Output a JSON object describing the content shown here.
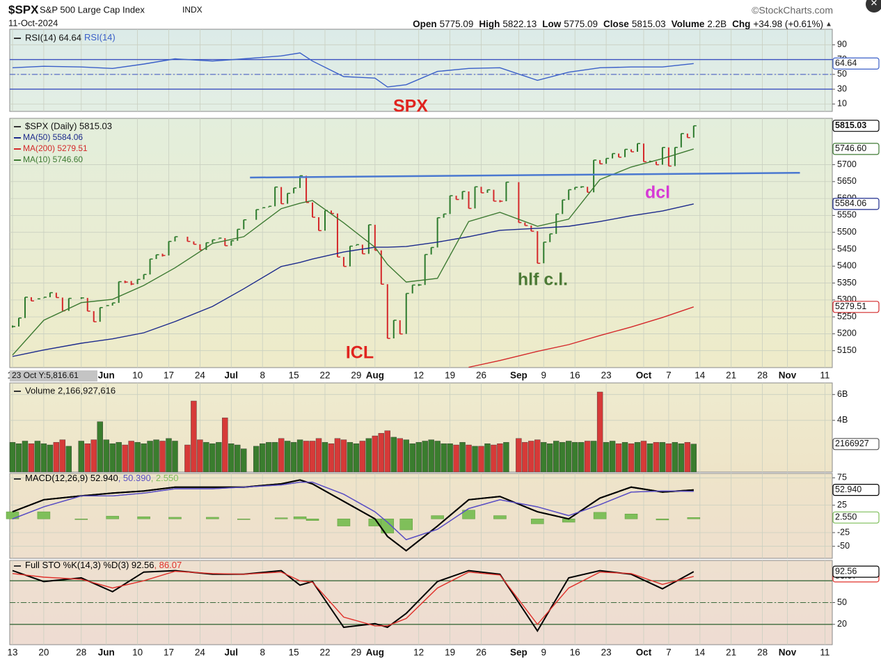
{
  "header": {
    "symbol": "$SPX",
    "name": "S&P 500 Large Cap Index",
    "exchange": "INDX",
    "source": "©StockCharts.com",
    "date": "11-Oct-2024",
    "quote": [
      {
        "label": "Open",
        "value": 5775.09
      },
      {
        "label": "High",
        "value": 5822.13
      },
      {
        "label": "Low",
        "value": 5775.09
      },
      {
        "label": "Close",
        "value": 5815.03
      },
      {
        "label": "Volume",
        "value": "2.2B"
      },
      {
        "label": "Chg",
        "value": "+34.98 (+0.61%)"
      }
    ]
  },
  "x_axis": {
    "cursor_label": "23 Oct Y:5,816.61",
    "ticks": [
      {
        "value": "2024-05-13",
        "label": "13"
      },
      {
        "value": "2024-05-20",
        "label": "20"
      },
      {
        "value": "2024-05-28",
        "label": "28"
      },
      {
        "value": "2024-06-03",
        "label": "Jun"
      },
      {
        "value": "2024-06-10",
        "label": "10"
      },
      {
        "value": "2024-06-17",
        "label": "17"
      },
      {
        "value": "2024-06-24",
        "label": "24"
      },
      {
        "value": "2024-07-01",
        "label": "Jul"
      },
      {
        "value": "2024-07-08",
        "label": "8"
      },
      {
        "value": "2024-07-15",
        "label": "15"
      },
      {
        "value": "2024-07-22",
        "label": "22"
      },
      {
        "value": "2024-07-29",
        "label": "29"
      },
      {
        "value": "2024-08-01",
        "label": "Aug"
      },
      {
        "value": "2024-08-12",
        "label": "12"
      },
      {
        "value": "2024-08-19",
        "label": "19"
      },
      {
        "value": "2024-08-26",
        "label": "26"
      },
      {
        "value": "2024-09-03",
        "label": "Sep"
      },
      {
        "value": "2024-09-09",
        "label": "9"
      },
      {
        "value": "2024-09-16",
        "label": "16"
      },
      {
        "value": "2024-09-23",
        "label": "23"
      },
      {
        "value": "2024-10-01",
        "label": "Oct"
      },
      {
        "value": "2024-10-07",
        "label": "7"
      },
      {
        "value": "2024-10-14",
        "label": "14"
      },
      {
        "value": "2024-10-21",
        "label": "21"
      },
      {
        "value": "2024-10-28",
        "label": "28"
      },
      {
        "value": "2024-11-01",
        "label": "Nov"
      },
      {
        "value": "2024-11-11",
        "label": "11"
      }
    ]
  },
  "chart_data": [
    {
      "type": "line",
      "title": "RSI(14) 64.64",
      "x": [
        "2024-05-13",
        "2024-05-20",
        "2024-05-28",
        "2024-06-04",
        "2024-06-11",
        "2024-06-18",
        "2024-06-26",
        "2024-07-03",
        "2024-07-11",
        "2024-07-16",
        "2024-07-18",
        "2024-07-25",
        "2024-08-01",
        "2024-08-05",
        "2024-08-08",
        "2024-08-15",
        "2024-08-22",
        "2024-08-29",
        "2024-09-06",
        "2024-09-13",
        "2024-09-20",
        "2024-09-27",
        "2024-10-04",
        "2024-10-11"
      ],
      "series": [
        {
          "name": "RSI(14)",
          "color": "#3a5fc8",
          "values": [
            59,
            61,
            60,
            58,
            64,
            71,
            68,
            71,
            75,
            79,
            68,
            47,
            45,
            33,
            36,
            54,
            58,
            59,
            42,
            53,
            59,
            60,
            60,
            64.64
          ]
        }
      ],
      "ylim": [
        0,
        111
      ],
      "yticks": [
        10,
        30,
        50,
        70,
        90
      ],
      "levels": [
        30,
        50,
        70
      ],
      "level_color": "#3a4fc0",
      "value_tags": [
        {
          "value": 64.64,
          "color": "#3a5fc8"
        }
      ],
      "annotations": [
        {
          "text": "SPX",
          "color": "#e0241f"
        }
      ]
    },
    {
      "type": "ohlc",
      "title": "$SPX (Daily) 5815.03",
      "color_up": "#2c7a2c",
      "color_down": "#d4282a",
      "categories": [
        "2024-05-13",
        "2024-05-14",
        "2024-05-15",
        "2024-05-16",
        "2024-05-17",
        "2024-05-20",
        "2024-05-21",
        "2024-05-22",
        "2024-05-23",
        "2024-05-24",
        "2024-05-28",
        "2024-05-29",
        "2024-05-30",
        "2024-05-31",
        "2024-06-03",
        "2024-06-04",
        "2024-06-05",
        "2024-06-06",
        "2024-06-07",
        "2024-06-10",
        "2024-06-11",
        "2024-06-12",
        "2024-06-13",
        "2024-06-14",
        "2024-06-17",
        "2024-06-18",
        "2024-06-20",
        "2024-06-21",
        "2024-06-24",
        "2024-06-25",
        "2024-06-26",
        "2024-06-27",
        "2024-06-28",
        "2024-07-01",
        "2024-07-02",
        "2024-07-03",
        "2024-07-05",
        "2024-07-08",
        "2024-07-09",
        "2024-07-10",
        "2024-07-11",
        "2024-07-12",
        "2024-07-15",
        "2024-07-16",
        "2024-07-17",
        "2024-07-18",
        "2024-07-19",
        "2024-07-22",
        "2024-07-23",
        "2024-07-24",
        "2024-07-25",
        "2024-07-26",
        "2024-07-29",
        "2024-07-30",
        "2024-07-31",
        "2024-08-01",
        "2024-08-02",
        "2024-08-05",
        "2024-08-06",
        "2024-08-07",
        "2024-08-08",
        "2024-08-09",
        "2024-08-12",
        "2024-08-13",
        "2024-08-14",
        "2024-08-15",
        "2024-08-16",
        "2024-08-19",
        "2024-08-20",
        "2024-08-21",
        "2024-08-22",
        "2024-08-23",
        "2024-08-26",
        "2024-08-27",
        "2024-08-28",
        "2024-08-29",
        "2024-08-30",
        "2024-09-03",
        "2024-09-04",
        "2024-09-05",
        "2024-09-06",
        "2024-09-09",
        "2024-09-10",
        "2024-09-11",
        "2024-09-12",
        "2024-09-13",
        "2024-09-16",
        "2024-09-17",
        "2024-09-18",
        "2024-09-19",
        "2024-09-20",
        "2024-09-23",
        "2024-09-24",
        "2024-09-25",
        "2024-09-26",
        "2024-09-27",
        "2024-09-30",
        "2024-10-01",
        "2024-10-02",
        "2024-10-03",
        "2024-10-04",
        "2024-10-07",
        "2024-10-08",
        "2024-10-09",
        "2024-10-10",
        "2024-10-11"
      ],
      "values": [
        5221.42,
        5246.68,
        5308.15,
        5297.1,
        5303.27,
        5308.13,
        5321.41,
        5307.01,
        5267.84,
        5304.72,
        5306.04,
        5266.95,
        5235.48,
        5277.51,
        5283.4,
        5291.34,
        5354.03,
        5352.96,
        5346.99,
        5360.79,
        5375.32,
        5421.03,
        5433.74,
        5431.6,
        5473.23,
        5487.03,
        5473.17,
        5464.62,
        5447.87,
        5469.3,
        5477.9,
        5482.87,
        5460.48,
        5475.09,
        5509.01,
        5537.02,
        5567.19,
        5572.85,
        5576.98,
        5633.91,
        5584.54,
        5615.35,
        5631.22,
        5667.2,
        5588.27,
        5544.59,
        5505.0,
        5564.41,
        5555.74,
        5427.13,
        5399.22,
        5459.1,
        5463.54,
        5436.44,
        5522.3,
        5446.68,
        5346.56,
        5186.33,
        5240.03,
        5199.5,
        5319.31,
        5344.16,
        5344.39,
        5434.43,
        5455.21,
        5543.22,
        5554.25,
        5608.25,
        5597.12,
        5620.85,
        5570.64,
        5634.61,
        5616.84,
        5625.8,
        5592.18,
        5591.96,
        5648.4,
        5528.93,
        5520.07,
        5503.41,
        5408.42,
        5471.05,
        5495.52,
        5554.13,
        5595.76,
        5626.02,
        5633.09,
        5634.58,
        5618.26,
        5713.64,
        5702.55,
        5718.57,
        5732.93,
        5722.26,
        5745.37,
        5738.17,
        5762.48,
        5708.75,
        5709.54,
        5699.94,
        5751.07,
        5695.94,
        5751.13,
        5792.04,
        5780.05,
        5815.03
      ],
      "series": [
        {
          "name": "MA(50) 5584.06",
          "color": "#1c2a8c",
          "x": [
            "2024-05-13",
            "2024-05-20",
            "2024-05-28",
            "2024-06-04",
            "2024-06-11",
            "2024-06-18",
            "2024-06-26",
            "2024-07-03",
            "2024-07-11",
            "2024-07-16",
            "2024-07-18",
            "2024-07-25",
            "2024-08-01",
            "2024-08-05",
            "2024-08-08",
            "2024-08-15",
            "2024-08-22",
            "2024-08-29",
            "2024-09-06",
            "2024-09-13",
            "2024-09-20",
            "2024-09-27",
            "2024-10-04",
            "2024-10-11"
          ],
          "values": [
            5133,
            5152,
            5172,
            5185,
            5203,
            5236,
            5281,
            5333,
            5399,
            5411,
            5421,
            5442,
            5456,
            5456,
            5458,
            5471,
            5487,
            5506,
            5512,
            5518,
            5532,
            5549,
            5563,
            5584.06
          ]
        },
        {
          "name": "MA(200) 5279.51",
          "color": "#d4282a",
          "x": [
            "2024-08-22",
            "2024-08-29",
            "2024-09-06",
            "2024-09-13",
            "2024-09-20",
            "2024-09-27",
            "2024-10-04",
            "2024-10-11"
          ],
          "values": [
            5101,
            5121,
            5148,
            5168,
            5195,
            5220,
            5248,
            5279.51
          ]
        },
        {
          "name": "MA(10) 5746.60",
          "color": "#3d7a32",
          "x": [
            "2024-05-13",
            "2024-05-20",
            "2024-05-28",
            "2024-06-04",
            "2024-06-11",
            "2024-06-18",
            "2024-06-26",
            "2024-07-03",
            "2024-07-11",
            "2024-07-16",
            "2024-07-18",
            "2024-07-25",
            "2024-08-01",
            "2024-08-05",
            "2024-08-08",
            "2024-08-15",
            "2024-08-22",
            "2024-08-29",
            "2024-09-06",
            "2024-09-13",
            "2024-09-20",
            "2024-09-27",
            "2024-10-04",
            "2024-10-11"
          ],
          "values": [
            5137,
            5240,
            5292,
            5302,
            5343,
            5395,
            5467,
            5487,
            5570,
            5586,
            5594,
            5528,
            5456,
            5405,
            5353,
            5364,
            5532,
            5559,
            5518,
            5539,
            5656,
            5693,
            5718,
            5746.6
          ]
        }
      ],
      "ylim": [
        5100,
        5837
      ],
      "yticks": [
        5150,
        5200,
        5250,
        5300,
        5350,
        5400,
        5450,
        5500,
        5550,
        5600,
        5650,
        5700
      ],
      "trendline": {
        "x": [
          "2024-07-04",
          "2024-11-05"
        ],
        "values": [
          5662,
          5676
        ],
        "color": "#4a78d0"
      },
      "value_tags": [
        {
          "value": 5815.03,
          "color": "#000000"
        },
        {
          "value": 5746.6,
          "label": "5746.60",
          "color": "#3d7a32"
        },
        {
          "value": 5584.06,
          "color": "#1c2a8c"
        },
        {
          "value": 5279.51,
          "color": "#d4282a"
        }
      ],
      "annotations": [
        {
          "text": "ICL",
          "color": "#e0241f"
        },
        {
          "text": "hlf c.l.",
          "color": "#4c7a36"
        },
        {
          "text": "dcl",
          "color": "#d63ad6"
        }
      ]
    },
    {
      "type": "bar",
      "title": "Volume 2,166,927,616",
      "values": [
        2.3,
        2.2,
        2.4,
        2.2,
        2.4,
        2.2,
        2.1,
        2.3,
        2.5,
        2.0,
        2.4,
        2.2,
        2.5,
        3.9,
        2.5,
        2.2,
        2.3,
        2.1,
        2.4,
        2.3,
        2.2,
        2.4,
        2.5,
        2.4,
        2.6,
        2.4,
        2.1,
        5.5,
        2.5,
        2.3,
        2.2,
        2.3,
        4.2,
        2.2,
        2.1,
        1.8,
        2.0,
        2.2,
        2.3,
        2.3,
        2.6,
        2.4,
        2.3,
        2.5,
        2.4,
        2.4,
        2.6,
        2.3,
        2.2,
        2.6,
        2.5,
        2.3,
        2.2,
        2.4,
        2.6,
        2.8,
        3.0,
        3.2,
        2.7,
        2.6,
        2.5,
        2.2,
        2.3,
        2.4,
        2.5,
        2.4,
        2.2,
        2.2,
        2.1,
        2.3,
        2.1,
        2.0,
        2.0,
        2.2,
        2.1,
        2.2,
        2.3,
        2.6,
        2.3,
        2.4,
        2.5,
        2.3,
        2.2,
        2.4,
        2.3,
        2.4,
        2.3,
        2.3,
        2.4,
        2.4,
        6.2,
        2.3,
        2.4,
        2.2,
        2.3,
        2.2,
        2.3,
        2.4,
        2.2,
        2.3,
        2.3,
        2.2,
        2.3,
        2.2,
        2.3,
        2.166927616
      ],
      "ylim": [
        0,
        6.9
      ],
      "yticks": [
        {
          "value": 4,
          "label": "4B"
        },
        {
          "value": 6,
          "label": "6B"
        }
      ],
      "value_tags": [
        {
          "value": 2.166927616,
          "label": "2166927",
          "color": "#555555"
        }
      ]
    },
    {
      "type": "line",
      "x": [
        "2024-05-13",
        "2024-05-20",
        "2024-05-28",
        "2024-06-04",
        "2024-06-11",
        "2024-06-18",
        "2024-06-26",
        "2024-07-03",
        "2024-07-11",
        "2024-07-16",
        "2024-07-18",
        "2024-07-25",
        "2024-08-01",
        "2024-08-05",
        "2024-08-08",
        "2024-08-15",
        "2024-08-22",
        "2024-08-29",
        "2024-09-06",
        "2024-09-13",
        "2024-09-20",
        "2024-09-27",
        "2024-10-04",
        "2024-10-11"
      ],
      "series": [
        {
          "name": "MACD(12,26,9) 52.940",
          "color": "#000000",
          "values": [
            13,
            35,
            42,
            47,
            51,
            58,
            58,
            58,
            64,
            71,
            64,
            32,
            0,
            -32,
            -58,
            -13,
            35,
            41,
            13,
            0,
            38,
            58,
            49,
            52.94
          ]
        },
        {
          "name": ", 50.390",
          "color": "#5b4fc4",
          "values": [
            0,
            22,
            42,
            42,
            47,
            55,
            55,
            58,
            62,
            67,
            67,
            45,
            13,
            -6,
            -38,
            -19,
            19,
            35,
            22,
            6,
            26,
            49,
            51,
            50.39
          ]
        },
        {
          "name": ", 2.550",
          "color": "#7fbf5a",
          "kind": "histogram",
          "values": [
            13,
            13,
            0,
            5,
            4,
            3,
            3,
            0,
            2,
            4,
            -3,
            -13,
            -13,
            -26,
            -20,
            6,
            16,
            6,
            -9,
            -6,
            12,
            9,
            -2,
            2.55
          ]
        }
      ],
      "ylim": [
        -72,
        83
      ],
      "yticks": [
        -50,
        -25,
        25,
        75
      ],
      "value_tags": [
        {
          "value": 52.94,
          "label": "52.940",
          "color": "#000000"
        },
        {
          "value": 2.55,
          "label": "2.550",
          "color": "#7fbf5a"
        }
      ]
    },
    {
      "type": "line",
      "x": [
        "2024-05-13",
        "2024-05-20",
        "2024-05-28",
        "2024-06-04",
        "2024-06-11",
        "2024-06-18",
        "2024-06-26",
        "2024-07-03",
        "2024-07-11",
        "2024-07-16",
        "2024-07-18",
        "2024-07-25",
        "2024-08-01",
        "2024-08-05",
        "2024-08-08",
        "2024-08-15",
        "2024-08-22",
        "2024-08-29",
        "2024-09-06",
        "2024-09-13",
        "2024-09-20",
        "2024-09-27",
        "2024-10-04",
        "2024-10-11"
      ],
      "series": [
        {
          "name": "Full STO %K(14,3) %D(3) 92.56",
          "color": "#000000",
          "values": [
            94,
            79,
            84,
            65,
            92,
            94,
            89,
            89,
            94,
            74,
            79,
            16,
            21,
            16,
            35,
            79,
            94,
            89,
            11,
            84,
            94,
            89,
            69,
            92.56
          ]
        },
        {
          "name": ", 86.07",
          "color": "#e0302a",
          "values": [
            90,
            85,
            82,
            70,
            80,
            93,
            90,
            89,
            92,
            80,
            78,
            30,
            18,
            18,
            28,
            70,
            92,
            88,
            20,
            70,
            92,
            90,
            75,
            86.07
          ]
        }
      ],
      "ylim": [
        -8,
        108
      ],
      "yticks": [
        20,
        50
      ],
      "levels": [
        20,
        50,
        80
      ],
      "level_color": "#3c6a3c",
      "value_tags": [
        {
          "value": 86.07,
          "color": "#e0302a"
        },
        {
          "value": 92.56,
          "color": "#000000"
        }
      ]
    }
  ]
}
